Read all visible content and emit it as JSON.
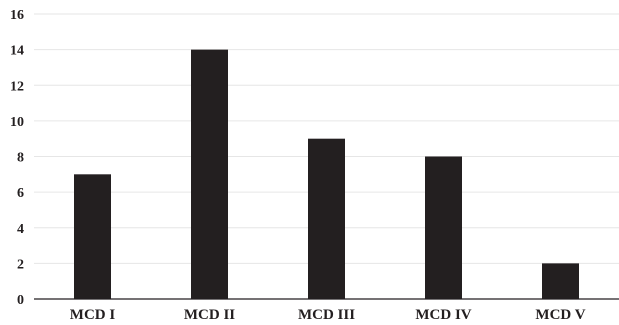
{
  "chart_data": {
    "type": "bar",
    "title": "",
    "xlabel": "",
    "ylabel": "",
    "categories": [
      "MCD I",
      "MCD II",
      "MCD III",
      "MCD IV",
      "MCD V"
    ],
    "values": [
      7,
      14,
      9,
      8,
      2
    ],
    "ylim": [
      0,
      16
    ],
    "yticks": [
      "0",
      "2",
      "4",
      "6",
      "8",
      "10",
      "12",
      "14",
      "16"
    ],
    "grid": true,
    "legend": "none",
    "colors": {
      "bar": "#231f20",
      "grid": "#e6e6e6",
      "axis": "#231f20"
    }
  }
}
